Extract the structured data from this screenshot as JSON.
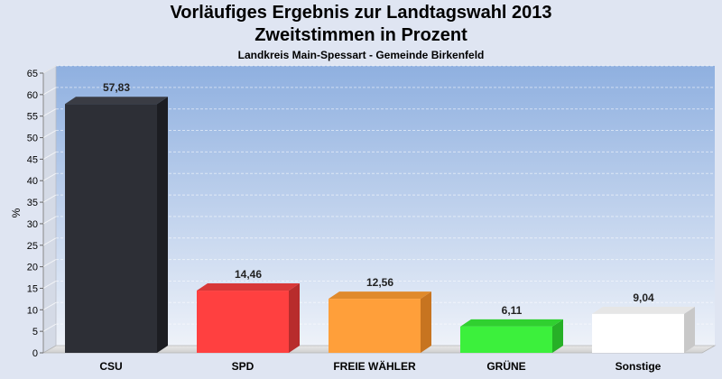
{
  "header": {
    "title_line1": "Vorläufiges Ergebnis zur Landtagswahl 2013",
    "title_line2": "Zweitstimmen in Prozent",
    "subtitle": "Landkreis Main-Spessart - Gemeinde Birkenfeld"
  },
  "chart_data": {
    "type": "bar",
    "title": "Vorläufiges Ergebnis zur Landtagswahl 2013 Zweitstimmen in Prozent",
    "subtitle": "Landkreis Main-Spessart - Gemeinde Birkenfeld",
    "categories": [
      "CSU",
      "SPD",
      "FREIE WÄHLER",
      "GRÜNE",
      "Sonstige"
    ],
    "values": [
      57.83,
      14.46,
      12.56,
      6.11,
      9.04
    ],
    "value_labels": [
      "57,83",
      "14,46",
      "12,56",
      "6,11",
      "9,04"
    ],
    "colors": [
      "#2d2f36",
      "#ff4040",
      "#ff9f3a",
      "#3cf03c",
      "#ffffff"
    ],
    "side_colors": [
      "#1c1d22",
      "#b82c2c",
      "#c77420",
      "#27b027",
      "#c8c8c8"
    ],
    "top_colors": [
      "#3a3c44",
      "#d83838",
      "#e08a2c",
      "#30d030",
      "#e6e6e6"
    ],
    "xlabel": "",
    "ylabel": "%",
    "ylim": [
      0,
      65
    ],
    "yticks": [
      0,
      5,
      10,
      15,
      20,
      25,
      30,
      35,
      40,
      45,
      50,
      55,
      60,
      65
    ],
    "grid": true,
    "legend": "none"
  }
}
